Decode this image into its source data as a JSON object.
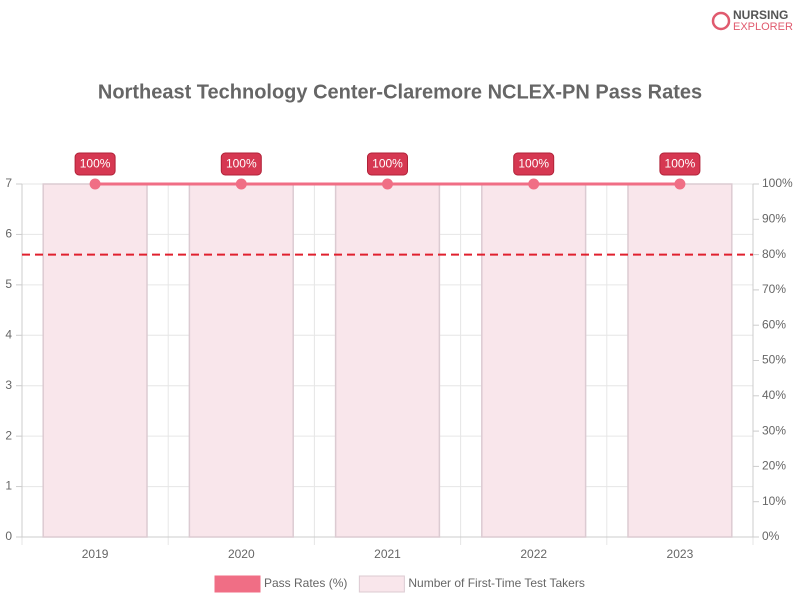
{
  "logo": {
    "line1": "NURSING",
    "line2": "EXPLORER"
  },
  "chart_data": {
    "type": "combo",
    "title": "Northeast Technology Center-Claremore NCLEX-PN Pass Rates",
    "categories": [
      "2019",
      "2020",
      "2021",
      "2022",
      "2023"
    ],
    "series": [
      {
        "name": "Pass Rates (%)",
        "type": "line",
        "axis": "y2",
        "color": "#f06e85",
        "values": [
          100,
          100,
          100,
          100,
          100
        ],
        "value_labels": [
          "100%",
          "100%",
          "100%",
          "100%",
          "100%"
        ]
      },
      {
        "name": "Number of First-Time Test Takers",
        "type": "bar",
        "axis": "y",
        "color": "#f9e6eb",
        "values": [
          7,
          7,
          7,
          7,
          7
        ]
      }
    ],
    "ylim": [
      0,
      7
    ],
    "yticks": [
      0,
      1,
      2,
      3,
      4,
      5,
      6,
      7
    ],
    "y2lim": [
      0,
      100
    ],
    "y2ticks": [
      {
        "value": 0,
        "label": "0%"
      },
      {
        "value": 10,
        "label": "10%"
      },
      {
        "value": 20,
        "label": "20%"
      },
      {
        "value": 30,
        "label": "30%"
      },
      {
        "value": 40,
        "label": "40%"
      },
      {
        "value": 50,
        "label": "50%"
      },
      {
        "value": 60,
        "label": "60%"
      },
      {
        "value": 70,
        "label": "70%"
      },
      {
        "value": 80,
        "label": "80%"
      },
      {
        "value": 90,
        "label": "90%"
      },
      {
        "value": 100,
        "label": "100%"
      }
    ],
    "reference_line": {
      "value": 80,
      "axis": "y2",
      "color": "#e0202e"
    },
    "grid": true,
    "legend": "bottom"
  }
}
